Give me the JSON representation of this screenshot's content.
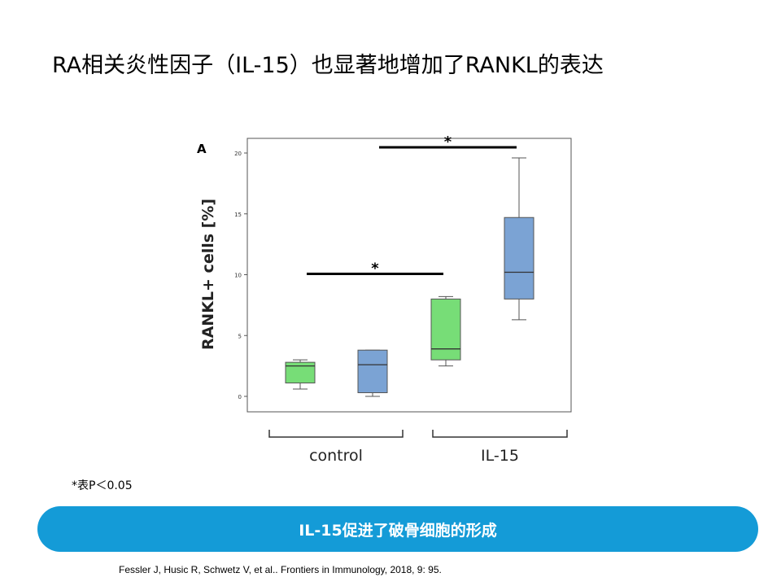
{
  "slide": {
    "title": "RA相关炎性因子（IL-15）也显著地增加了RANKL的表达",
    "footnote": "*表P＜0.05",
    "banner": "IL-15促进了破骨细胞的形成",
    "citation": "Fessler J, Husic R, Schwetz V, et al.. Frontiers in Immunology, 2018, 9: 95."
  },
  "chart_data": {
    "type": "box",
    "panel_label": "A",
    "ylabel": "RANKL+ cells [%]",
    "ylim": [
      0,
      20
    ],
    "yticks": [
      0,
      5,
      10,
      15,
      20
    ],
    "group_labels": [
      "control",
      "IL-15"
    ],
    "colors": {
      "green": "#77dd77",
      "blue": "#7ba3d4",
      "line": "#555555"
    },
    "boxes": [
      {
        "group": "control",
        "color": "green",
        "min": 0.6,
        "q1": 1.1,
        "median": 2.5,
        "q3": 2.8,
        "max": 3.0
      },
      {
        "group": "control",
        "color": "blue",
        "min": 0.0,
        "q1": 0.3,
        "median": 2.6,
        "q3": 3.8,
        "max": 3.8
      },
      {
        "group": "IL-15",
        "color": "green",
        "min": 2.5,
        "q1": 3.0,
        "median": 3.9,
        "q3": 8.0,
        "max": 8.2
      },
      {
        "group": "IL-15",
        "color": "blue",
        "min": 6.3,
        "q1": 8.0,
        "median": 10.2,
        "q3": 14.7,
        "max": 19.6
      }
    ],
    "significance": [
      {
        "from": 0,
        "to": 2,
        "y": 9.8,
        "label": "*"
      },
      {
        "from": 1,
        "to": 3,
        "y": 20.2,
        "label": "*"
      }
    ]
  }
}
